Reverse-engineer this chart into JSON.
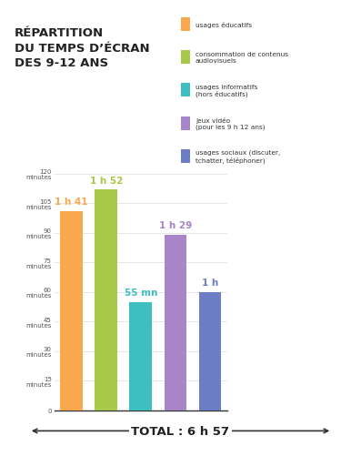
{
  "title_line1": "RÉPARTITION",
  "title_line2": "DU TEMPS D’ÉCRAN",
  "title_line3": "DES 9-12 ANS",
  "bars": [
    {
      "label": "usages éducatifs",
      "value": 101,
      "color": "#F9A84D",
      "value_label": "1 h 41",
      "label_color": "#F9A84D"
    },
    {
      "label": "consommation de contenus\naudiovisuels",
      "value": 112,
      "color": "#A8C84A",
      "value_label": "1 h 52",
      "label_color": "#A8C84A"
    },
    {
      "label": "usages informatifs\n(hors éducatifs)",
      "value": 55,
      "color": "#3DBFBF",
      "value_label": "55 mn",
      "label_color": "#3DBFBF"
    },
    {
      "label": "jeux vidéo\n(pour les 9 h 12 ans)",
      "value": 89,
      "color": "#A885C8",
      "value_label": "1 h 29",
      "label_color": "#A885C8"
    },
    {
      "label": "usages sociaux (discuter,\ntchatter, téléphoner)",
      "value": 60,
      "color": "#6B7DC4",
      "value_label": "1 h",
      "label_color": "#6B7DC4"
    }
  ],
  "yticks": [
    0,
    15,
    30,
    45,
    60,
    75,
    90,
    105,
    120
  ],
  "ytick_labels": [
    "0",
    "15\nminutes",
    "30\nminutes",
    "45\nminutes",
    "60\nminutes",
    "75\nminutes",
    "90\nminutes",
    "105\nminutes",
    "120\nminutes"
  ],
  "ylim": [
    0,
    132
  ],
  "total_label": "TOTAL : 6 h 57",
  "background_color": "#FFFFFF",
  "legend_items": [
    {
      "label": "usages éducatifs",
      "color": "#F9A84D"
    },
    {
      "label": "consommation de contenus\naudiovisuels",
      "color": "#A8C84A"
    },
    {
      "label": "usages informatifs\n(hors éducatifs)",
      "color": "#3DBFBF"
    },
    {
      "label": "jeux vidéo\n(pour les 9 h 12 ans)",
      "color": "#A885C8"
    },
    {
      "label": "usages sociaux (discuter,\ntchatter, téléphoner)",
      "color": "#6B7DC4"
    }
  ]
}
